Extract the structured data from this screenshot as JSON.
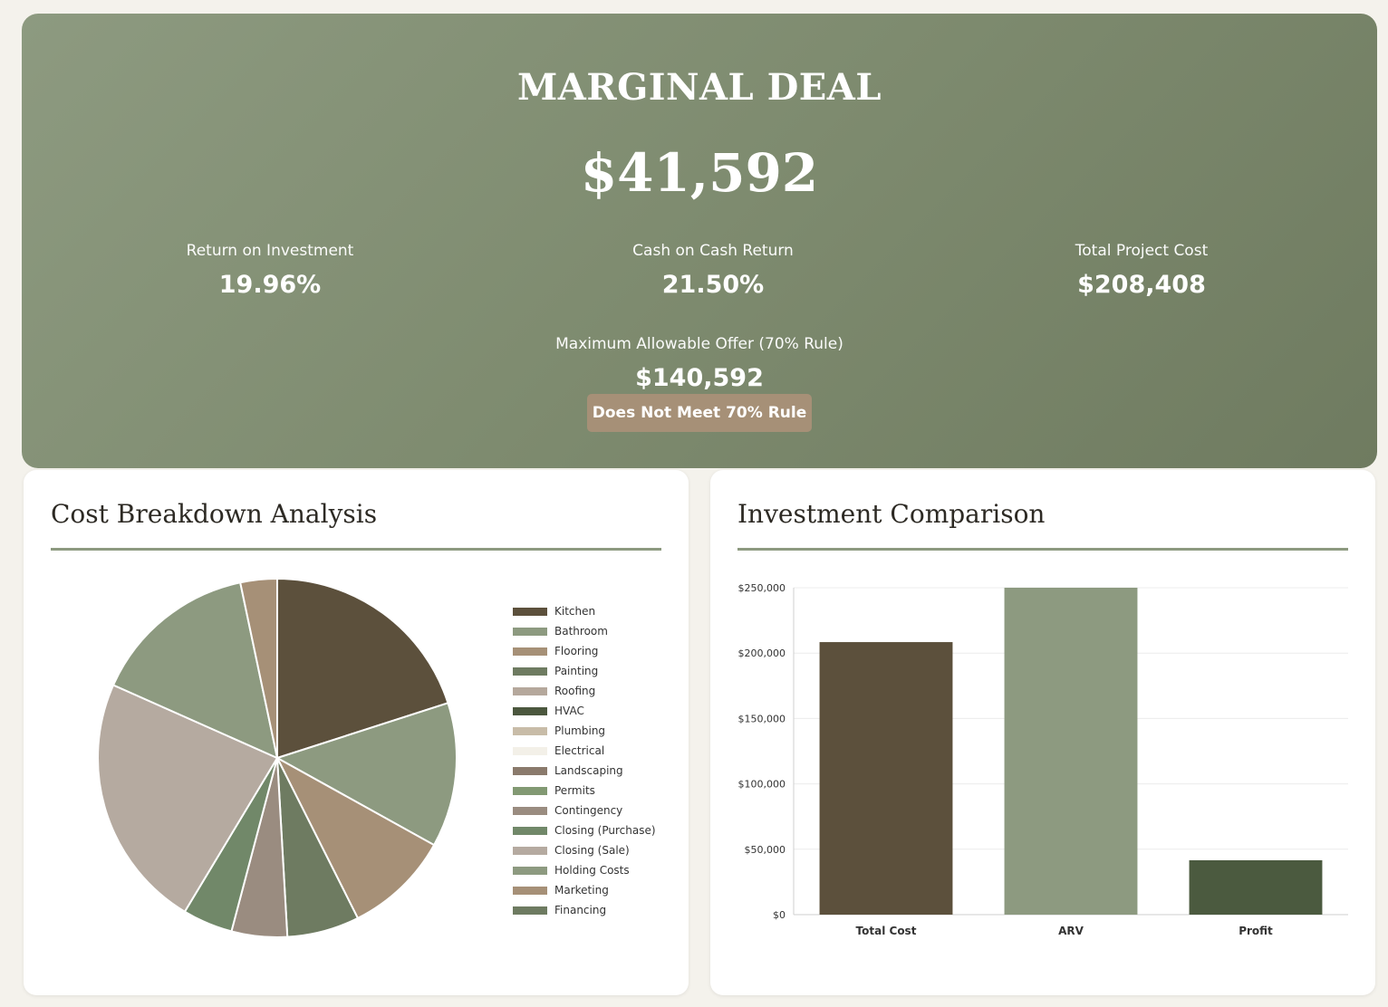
{
  "summary": {
    "verdict": "MARGINAL DEAL",
    "profit": "$41,592",
    "roi_label": "Return on Investment",
    "roi_value": "19.96%",
    "coc_label": "Cash on Cash Return",
    "coc_value": "21.50%",
    "tpc_label": "Total Project Cost",
    "tpc_value": "$208,408",
    "mao_label": "Maximum Allowable Offer (70% Rule)",
    "mao_value": "$140,592",
    "rule_status": "Does Not Meet 70% Rule"
  },
  "cost_card": {
    "title": "Cost Breakdown Analysis"
  },
  "invest_card": {
    "title": "Investment Comparison"
  },
  "chart_data": [
    {
      "type": "pie",
      "title": "Cost Breakdown Analysis",
      "legend_position": "right",
      "labels": [
        "Kitchen",
        "Bathroom",
        "Flooring",
        "Painting",
        "Roofing",
        "HVAC",
        "Plumbing",
        "Electrical",
        "Landscaping",
        "Permits",
        "Contingency",
        "Closing (Purchase)",
        "Closing (Sale)",
        "Holding Costs",
        "Marketing",
        "Financing"
      ],
      "colors": [
        "#5c503c",
        "#8d9a80",
        "#a69077",
        "#6e7b61",
        "#b5a89c",
        "#4b573e",
        "#c8bca8",
        "#f3f0e8",
        "#8a7a6c",
        "#829973",
        "#9a8c80",
        "#718869",
        "#b5aaa0",
        "#8d9a80",
        "#a69077",
        "#6e7b61"
      ],
      "values": [
        20,
        13,
        9.5,
        6.5,
        0,
        0,
        0,
        0,
        0,
        0,
        5,
        4.5,
        23,
        15,
        3.3,
        0
      ]
    },
    {
      "type": "bar",
      "title": "Investment Comparison",
      "categories": [
        "Total Cost",
        "ARV",
        "Profit"
      ],
      "values": [
        208408,
        250000,
        41592
      ],
      "colors": [
        "#5c503c",
        "#8d9a80",
        "#4b5a3f"
      ],
      "ylim": [
        0,
        250000
      ],
      "yticks": [
        "$0",
        "$50,000",
        "$100,000",
        "$150,000",
        "$200,000",
        "$250,000"
      ],
      "grid": true
    }
  ]
}
